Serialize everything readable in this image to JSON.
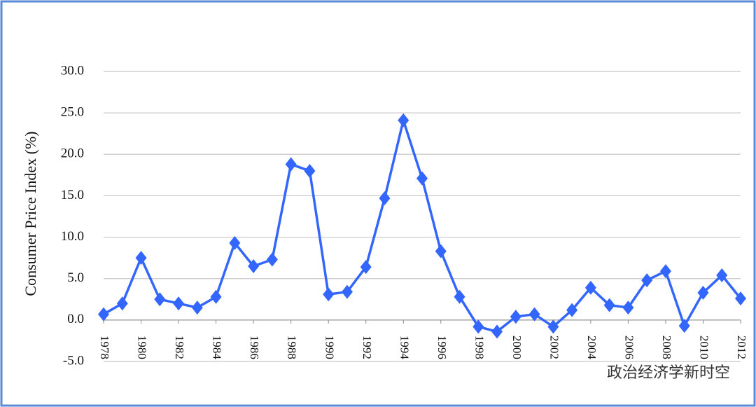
{
  "chart_data": {
    "type": "line",
    "y_label": "Consumer  Price Index (%)",
    "x": [
      1978,
      1979,
      1980,
      1981,
      1982,
      1983,
      1984,
      1985,
      1986,
      1987,
      1988,
      1989,
      1990,
      1991,
      1992,
      1993,
      1994,
      1995,
      1996,
      1997,
      1998,
      1999,
      2000,
      2001,
      2002,
      2003,
      2004,
      2005,
      2006,
      2007,
      2008,
      2009,
      2010,
      2011,
      2012
    ],
    "series": [
      {
        "color": "#3366ff",
        "values": [
          0.7,
          2.0,
          7.5,
          2.5,
          2.0,
          1.5,
          2.8,
          9.3,
          6.5,
          7.3,
          18.8,
          18.0,
          3.1,
          3.4,
          6.4,
          14.7,
          24.1,
          17.1,
          8.3,
          2.8,
          -0.8,
          -1.4,
          0.4,
          0.7,
          -0.8,
          1.2,
          3.9,
          1.8,
          1.5,
          4.8,
          5.9,
          -0.7,
          3.3,
          5.4,
          2.6
        ]
      }
    ],
    "xlim": [
      1978,
      2012
    ],
    "xticks": [
      1978,
      1980,
      1982,
      1984,
      1986,
      1988,
      1990,
      1992,
      1994,
      1996,
      1998,
      2000,
      2002,
      2004,
      2006,
      2008,
      2010,
      2012
    ],
    "ylim": [
      -5,
      30
    ],
    "yticks": [
      {
        "value": -5,
        "label": "-5.0"
      },
      {
        "value": 0,
        "label": "0.0"
      },
      {
        "value": 5,
        "label": "5.0"
      },
      {
        "value": 10,
        "label": "10.0"
      },
      {
        "value": 15,
        "label": "15.0"
      },
      {
        "value": 20,
        "label": "20.0"
      },
      {
        "value": 25,
        "label": "25.0"
      },
      {
        "value": 30,
        "label": "30.0"
      }
    ],
    "grid": true,
    "watermark": "政治经济学新时空"
  }
}
